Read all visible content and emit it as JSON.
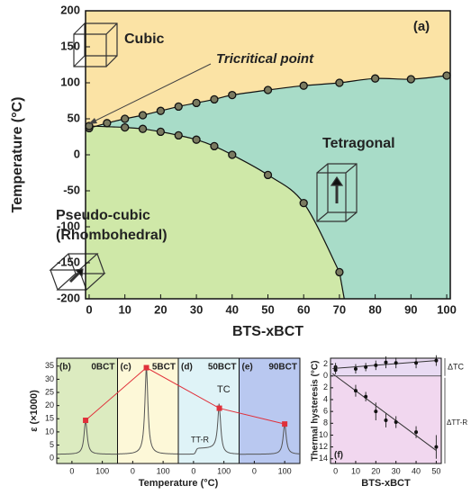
{
  "chart_data": [
    {
      "type": "phase",
      "label": "(a)",
      "xlabel": "BTS-xBCT",
      "ylabel": "Temperature (°C)",
      "xlim": [
        -1,
        101
      ],
      "ylim": [
        -200,
        200
      ],
      "xticks": [
        0,
        10,
        20,
        30,
        40,
        50,
        60,
        70,
        80,
        90,
        100
      ],
      "yticks": [
        -200,
        -150,
        -100,
        -50,
        0,
        50,
        100,
        150,
        200
      ],
      "regions": [
        "Cubic",
        "Tetragonal",
        "Pseudo-cubic",
        "(Rhombohedral)"
      ],
      "region_colors": [
        "#fbe3a5",
        "#a8dcc8",
        "#cfe8a8"
      ],
      "annotation": "Tricritical point",
      "series": [
        {
          "color": "#7a7a60",
          "x": [
            0,
            5,
            10,
            15,
            20,
            25,
            30,
            35,
            40,
            50,
            60,
            70,
            80,
            90,
            100
          ],
          "values": [
            37,
            44,
            50,
            55,
            61,
            67,
            72,
            77,
            83,
            90,
            96,
            100,
            106,
            105,
            110
          ]
        },
        {
          "color": "#7a7a60",
          "x": [
            0,
            10,
            15,
            20,
            25,
            30,
            35,
            40,
            50,
            60,
            70
          ],
          "values": [
            40,
            38,
            36,
            32,
            27,
            21,
            12,
            0,
            -28,
            -67,
            -163
          ]
        }
      ]
    },
    {
      "type": "dielectric",
      "xlabel": "Temperature (°C)",
      "ylabel": "ε (×1000)",
      "xlim": [
        -50,
        150
      ],
      "ylim": [
        -2,
        38
      ],
      "xticks": [
        0,
        100
      ],
      "yticks": [
        0,
        5,
        10,
        15,
        20,
        25,
        30,
        35
      ],
      "panels": [
        {
          "letter": "(b)",
          "name": "0BCT",
          "color": "#dcebc0"
        },
        {
          "letter": "(c)",
          "name": "5BCT",
          "color": "#fdf8d8"
        },
        {
          "letter": "(d)",
          "name": "50BCT",
          "color": "#dff3f7"
        },
        {
          "letter": "(e)",
          "name": "90BCT",
          "color": "#b9c8f0"
        }
      ],
      "peaks": {
        "x": [
          45,
          45,
          85,
          100
        ],
        "values": [
          14.4,
          34.4,
          19,
          13
        ],
        "color": "#e0303a"
      },
      "annotations": [
        "TC",
        "TT-R"
      ]
    },
    {
      "type": "hysteresis",
      "label": "(f)",
      "xlabel": "BTS-xBCT",
      "ylabel": "Thermal hysteresis (°C)",
      "xlim": [
        -2.5,
        52.5
      ],
      "ylim": [
        -3,
        14.8
      ],
      "xticks": [
        0,
        10,
        20,
        30,
        40,
        50
      ],
      "yticks": [
        {
          "value": -2,
          "label": "2"
        },
        0,
        2,
        4,
        6,
        8,
        10,
        12,
        14
      ],
      "series": [
        {
          "name": "ΔTC",
          "x": [
            0,
            10,
            15,
            20,
            25,
            30,
            40,
            50
          ],
          "values": [
            -1.5,
            -1.2,
            -1.5,
            -1.8,
            -2.3,
            -2.2,
            -2.2,
            -2.6
          ],
          "errors": [
            0.7,
            0.8,
            0.7,
            0.8,
            1,
            0.9,
            0.9,
            0.9
          ]
        },
        {
          "name": "ΔTT-R",
          "x": [
            0,
            10,
            15,
            20,
            25,
            30,
            40,
            50
          ],
          "values": [
            -1,
            2.5,
            3.5,
            6,
            7.5,
            7.8,
            9.5,
            12
          ],
          "errors": [
            0.7,
            1,
            0.8,
            1.5,
            1.2,
            1,
            1,
            2
          ]
        }
      ]
    }
  ]
}
